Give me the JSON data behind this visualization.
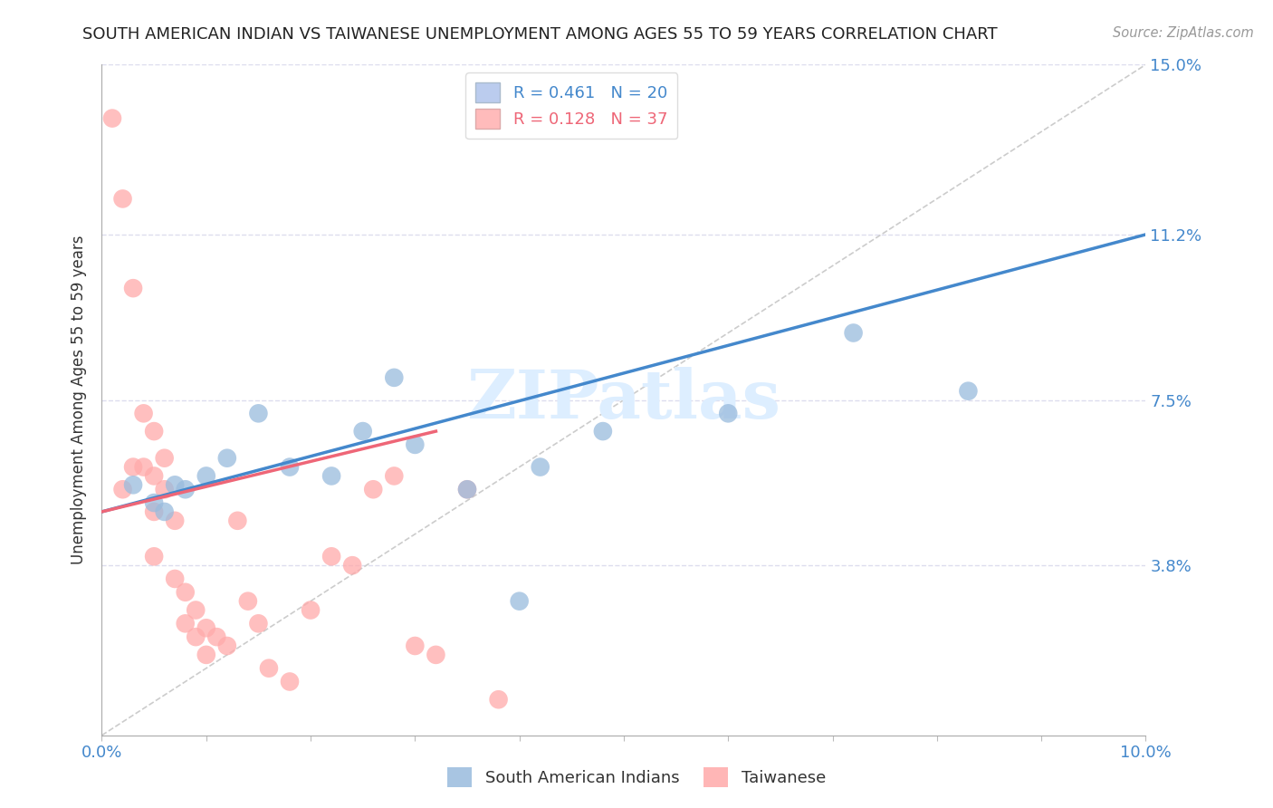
{
  "title": "SOUTH AMERICAN INDIAN VS TAIWANESE UNEMPLOYMENT AMONG AGES 55 TO 59 YEARS CORRELATION CHART",
  "source": "Source: ZipAtlas.com",
  "ylabel": "Unemployment Among Ages 55 to 59 years",
  "xlim": [
    0,
    0.1
  ],
  "ylim": [
    0,
    0.15
  ],
  "ytick_values": [
    0,
    0.038,
    0.075,
    0.112,
    0.15
  ],
  "xtick_values": [
    0.0,
    0.01,
    0.02,
    0.03,
    0.04,
    0.05,
    0.06,
    0.07,
    0.08,
    0.09,
    0.1
  ],
  "blue_scatter_x": [
    0.003,
    0.005,
    0.006,
    0.007,
    0.008,
    0.01,
    0.012,
    0.015,
    0.018,
    0.022,
    0.025,
    0.03,
    0.035,
    0.04,
    0.042,
    0.048,
    0.06,
    0.072,
    0.083,
    0.028
  ],
  "blue_scatter_y": [
    0.056,
    0.052,
    0.05,
    0.056,
    0.055,
    0.058,
    0.062,
    0.072,
    0.06,
    0.058,
    0.068,
    0.065,
    0.055,
    0.03,
    0.06,
    0.068,
    0.072,
    0.09,
    0.077,
    0.08
  ],
  "pink_scatter_x": [
    0.001,
    0.002,
    0.002,
    0.003,
    0.003,
    0.004,
    0.004,
    0.005,
    0.005,
    0.005,
    0.005,
    0.006,
    0.006,
    0.007,
    0.007,
    0.008,
    0.008,
    0.009,
    0.009,
    0.01,
    0.01,
    0.011,
    0.012,
    0.013,
    0.014,
    0.015,
    0.016,
    0.018,
    0.02,
    0.022,
    0.024,
    0.026,
    0.028,
    0.03,
    0.032,
    0.035,
    0.038
  ],
  "pink_scatter_y": [
    0.138,
    0.12,
    0.055,
    0.1,
    0.06,
    0.072,
    0.06,
    0.068,
    0.058,
    0.05,
    0.04,
    0.062,
    0.055,
    0.048,
    0.035,
    0.032,
    0.025,
    0.028,
    0.022,
    0.024,
    0.018,
    0.022,
    0.02,
    0.048,
    0.03,
    0.025,
    0.015,
    0.012,
    0.028,
    0.04,
    0.038,
    0.055,
    0.058,
    0.02,
    0.018,
    0.055,
    0.008
  ],
  "blue_line_x0": 0.0,
  "blue_line_y0": 0.05,
  "blue_line_x1": 0.1,
  "blue_line_y1": 0.112,
  "pink_line_x0": 0.0,
  "pink_line_y0": 0.05,
  "pink_line_x1": 0.032,
  "pink_line_y1": 0.068,
  "blue_R": 0.461,
  "blue_N": 20,
  "pink_R": 0.128,
  "pink_N": 37,
  "blue_scatter_color": "#99BBDD",
  "pink_scatter_color": "#FFAAAA",
  "blue_line_color": "#4488CC",
  "pink_line_color": "#EE6677",
  "diagonal_color": "#CCCCCC",
  "title_color": "#222222",
  "axis_label_color": "#333333",
  "tick_label_color": "#4488CC",
  "watermark_color": "#DDEEFF",
  "background_color": "#FFFFFF",
  "grid_color": "#DDDDEE",
  "legend_fill_blue": "#BBCCEE",
  "legend_fill_pink": "#FFBBBB",
  "legend_text_blue": "#4488CC",
  "legend_text_pink": "#EE6677"
}
